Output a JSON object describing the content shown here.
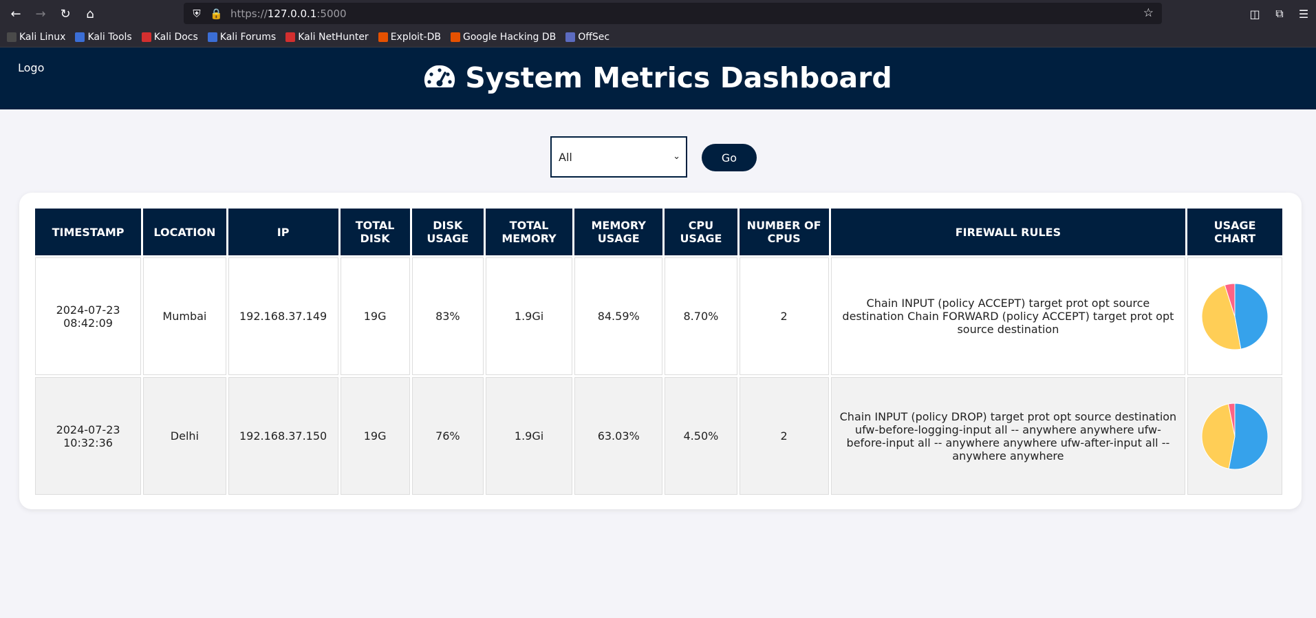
{
  "browser": {
    "url_scheme": "https://",
    "url_host": "127.0.0.1",
    "url_port": ":5000",
    "bookmarks": [
      {
        "label": "Kali Linux",
        "color": "#4a4a4a"
      },
      {
        "label": "Kali Tools",
        "color": "#3b6ed6"
      },
      {
        "label": "Kali Docs",
        "color": "#d32f2f"
      },
      {
        "label": "Kali Forums",
        "color": "#3b6ed6"
      },
      {
        "label": "Kali NetHunter",
        "color": "#d32f2f"
      },
      {
        "label": "Exploit-DB",
        "color": "#e65100"
      },
      {
        "label": "Google Hacking DB",
        "color": "#e65100"
      },
      {
        "label": "OffSec",
        "color": "#5c6bc0"
      }
    ]
  },
  "header": {
    "logo": "Logo",
    "title": "System Metrics Dashboard",
    "title_icon": "tachometer-icon"
  },
  "filter": {
    "selected": "All",
    "go_label": "Go"
  },
  "table": {
    "columns": [
      "Timestamp",
      "Location",
      "IP",
      "Total Disk",
      "Disk Usage",
      "Total Memory",
      "Memory Usage",
      "CPU Usage",
      "Number of CPUs",
      "Firewall Rules",
      "Usage Chart"
    ],
    "rows": [
      {
        "timestamp": "2024-07-23 08:42:09",
        "location": "Mumbai",
        "ip": "192.168.37.149",
        "total_disk": "19G",
        "disk_usage": "83%",
        "total_memory": "1.9Gi",
        "memory_usage": "84.59%",
        "cpu_usage": "8.70%",
        "num_cpus": "2",
        "firewall_rules": "Chain INPUT (policy ACCEPT) target prot opt source destination Chain FORWARD (policy ACCEPT) target prot opt source destination",
        "chart": [
          {
            "value": 83,
            "color": "#36a2eb"
          },
          {
            "value": 84.59,
            "color": "#ffce56"
          },
          {
            "value": 8.7,
            "color": "#ff6384"
          }
        ]
      },
      {
        "timestamp": "2024-07-23 10:32:36",
        "location": "Delhi",
        "ip": "192.168.37.150",
        "total_disk": "19G",
        "disk_usage": "76%",
        "total_memory": "1.9Gi",
        "memory_usage": "63.03%",
        "cpu_usage": "4.50%",
        "num_cpus": "2",
        "firewall_rules": "Chain INPUT (policy DROP) target prot opt source destination ufw-before-logging-input all -- anywhere anywhere ufw-before-input all -- anywhere anywhere ufw-after-input all -- anywhere anywhere",
        "chart": [
          {
            "value": 76,
            "color": "#36a2eb"
          },
          {
            "value": 63.03,
            "color": "#ffce56"
          },
          {
            "value": 4.5,
            "color": "#ff6384"
          }
        ]
      }
    ]
  }
}
